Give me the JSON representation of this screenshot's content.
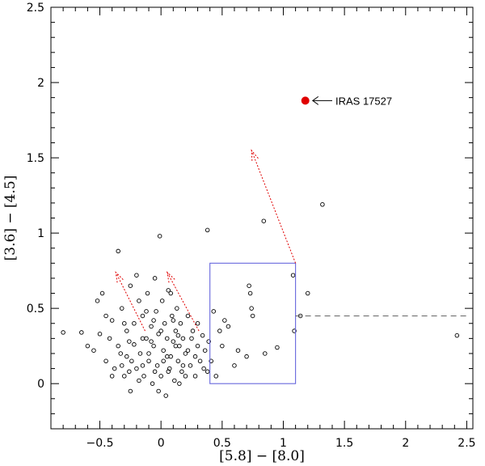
{
  "chart_data": {
    "type": "scatter",
    "title": "",
    "xlabel": "[5.8] − [8.0]",
    "ylabel": "[3.6] − [4.5]",
    "xlim": [
      -0.9,
      2.55
    ],
    "ylim": [
      -0.3,
      2.5
    ],
    "x_ticks": [
      -0.5,
      0,
      0.5,
      1,
      1.5,
      2,
      2.5
    ],
    "x_tick_labels": [
      "−0.5",
      "0",
      "0.5",
      "1",
      "1.5",
      "2",
      "2.5"
    ],
    "y_ticks": [
      0,
      0.5,
      1,
      1.5,
      2,
      2.5
    ],
    "y_tick_labels": [
      "0",
      "0.5",
      "1",
      "1.5",
      "2",
      "2.5"
    ],
    "grid": false,
    "colors": {
      "points": "#000000",
      "highlight": "#e00000",
      "box": "#6666dd",
      "vectors": "#e00000",
      "dashed": "#666666"
    },
    "highlight": {
      "name": "IRAS 17527",
      "x": 1.18,
      "y": 1.88
    },
    "annotation": {
      "text": "IRAS 17527",
      "arrow_from": [
        1.4,
        1.88
      ],
      "arrow_to": [
        1.24,
        1.88
      ]
    },
    "box": {
      "x0": 0.4,
      "x1": 1.1,
      "y0": 0.0,
      "y1": 0.8
    },
    "dashed_line": {
      "x0": 1.1,
      "x1": 2.5,
      "y": 0.45
    },
    "reddening_vectors": [
      {
        "x0": -0.13,
        "y0": 0.35,
        "x1": -0.37,
        "y1": 0.74
      },
      {
        "x0": 0.31,
        "y0": 0.35,
        "x1": 0.05,
        "y1": 0.74
      },
      {
        "x0": 1.1,
        "y0": 0.8,
        "x1": 0.74,
        "y1": 1.55
      }
    ],
    "series": [
      {
        "points": [
          [
            -0.8,
            0.34
          ],
          [
            -0.65,
            0.34
          ],
          [
            -0.6,
            0.25
          ],
          [
            -0.55,
            0.22
          ],
          [
            -0.52,
            0.55
          ],
          [
            -0.48,
            0.6
          ],
          [
            -0.45,
            0.45
          ],
          [
            -0.42,
            0.3
          ],
          [
            -0.4,
            0.42
          ],
          [
            -0.38,
            0.1
          ],
          [
            -0.35,
            0.88
          ],
          [
            -0.33,
            0.2
          ],
          [
            -0.32,
            0.5
          ],
          [
            -0.3,
            0.05
          ],
          [
            -0.28,
            0.35
          ],
          [
            -0.26,
            0.28
          ],
          [
            -0.25,
            -0.05
          ],
          [
            -0.24,
            0.15
          ],
          [
            -0.22,
            0.4
          ],
          [
            -0.2,
            0.1
          ],
          [
            -0.18,
            0.55
          ],
          [
            -0.17,
            0.2
          ],
          [
            -0.15,
            0.45
          ],
          [
            -0.14,
            0.05
          ],
          [
            -0.12,
            0.3
          ],
          [
            -0.11,
            0.6
          ],
          [
            -0.1,
            0.15
          ],
          [
            -0.08,
            0.38
          ],
          [
            -0.07,
            0.0
          ],
          [
            -0.06,
            0.25
          ],
          [
            -0.05,
            0.7
          ],
          [
            -0.04,
            0.48
          ],
          [
            -0.03,
            0.12
          ],
          [
            -0.02,
            0.33
          ],
          [
            -0.01,
            0.98
          ],
          [
            0.0,
            0.05
          ],
          [
            0.01,
            0.55
          ],
          [
            0.02,
            0.22
          ],
          [
            0.03,
            0.4
          ],
          [
            0.04,
            -0.08
          ],
          [
            0.05,
            0.3
          ],
          [
            0.06,
            0.62
          ],
          [
            0.07,
            0.1
          ],
          [
            0.08,
            0.18
          ],
          [
            0.09,
            0.45
          ],
          [
            0.1,
            0.28
          ],
          [
            0.11,
            0.02
          ],
          [
            0.12,
            0.35
          ],
          [
            0.13,
            0.5
          ],
          [
            0.14,
            0.15
          ],
          [
            0.15,
            0.25
          ],
          [
            0.16,
            0.4
          ],
          [
            0.17,
            0.08
          ],
          [
            0.18,
            0.3
          ],
          [
            0.2,
            0.2
          ],
          [
            0.22,
            0.45
          ],
          [
            0.24,
            0.12
          ],
          [
            0.26,
            0.35
          ],
          [
            0.28,
            0.05
          ],
          [
            0.3,
            0.25
          ],
          [
            0.32,
            0.15
          ],
          [
            0.34,
            0.32
          ],
          [
            0.36,
            0.22
          ],
          [
            0.38,
            0.08
          ],
          [
            0.39,
            0.28
          ],
          [
            0.41,
            0.15
          ],
          [
            0.43,
            0.48
          ],
          [
            0.45,
            0.05
          ],
          [
            0.48,
            0.35
          ],
          [
            0.5,
            0.25
          ],
          [
            0.52,
            0.42
          ],
          [
            0.55,
            0.38
          ],
          [
            0.6,
            0.12
          ],
          [
            0.63,
            0.22
          ],
          [
            0.7,
            0.18
          ],
          [
            0.72,
            0.65
          ],
          [
            0.73,
            0.6
          ],
          [
            0.74,
            0.5
          ],
          [
            0.75,
            0.45
          ],
          [
            0.85,
            0.2
          ],
          [
            0.95,
            0.24
          ],
          [
            1.08,
            0.72
          ],
          [
            1.09,
            0.35
          ],
          [
            1.14,
            0.45
          ],
          [
            1.2,
            0.6
          ],
          [
            0.38,
            1.02
          ],
          [
            0.84,
            1.08
          ],
          [
            1.32,
            1.19
          ],
          [
            2.42,
            0.32
          ],
          [
            -0.2,
            0.72
          ],
          [
            -0.25,
            0.65
          ],
          [
            -0.1,
            0.2
          ],
          [
            0.0,
            0.35
          ],
          [
            0.05,
            0.18
          ],
          [
            -0.15,
            0.12
          ],
          [
            -0.28,
            0.18
          ],
          [
            -0.05,
            0.08
          ],
          [
            0.1,
            0.42
          ],
          [
            0.2,
            0.05
          ],
          [
            -0.35,
            0.25
          ],
          [
            -0.45,
            0.15
          ],
          [
            -0.5,
            0.33
          ],
          [
            -0.02,
            -0.05
          ],
          [
            0.15,
            0.0
          ],
          [
            0.25,
            0.3
          ],
          [
            -0.12,
            0.48
          ],
          [
            -0.3,
            0.4
          ],
          [
            0.08,
            0.6
          ],
          [
            -0.18,
            0.02
          ],
          [
            0.3,
            0.4
          ],
          [
            0.12,
            0.25
          ],
          [
            -0.08,
            0.28
          ],
          [
            0.02,
            0.15
          ],
          [
            -0.22,
            0.26
          ],
          [
            0.18,
            0.12
          ],
          [
            -0.4,
            0.05
          ],
          [
            0.35,
            0.1
          ],
          [
            -0.15,
            0.3
          ],
          [
            0.06,
            0.08
          ],
          [
            -0.06,
            0.42
          ],
          [
            0.22,
            0.22
          ],
          [
            -0.32,
            0.12
          ],
          [
            0.14,
            0.32
          ],
          [
            -0.26,
            0.08
          ],
          [
            0.28,
            0.18
          ]
        ]
      }
    ]
  }
}
